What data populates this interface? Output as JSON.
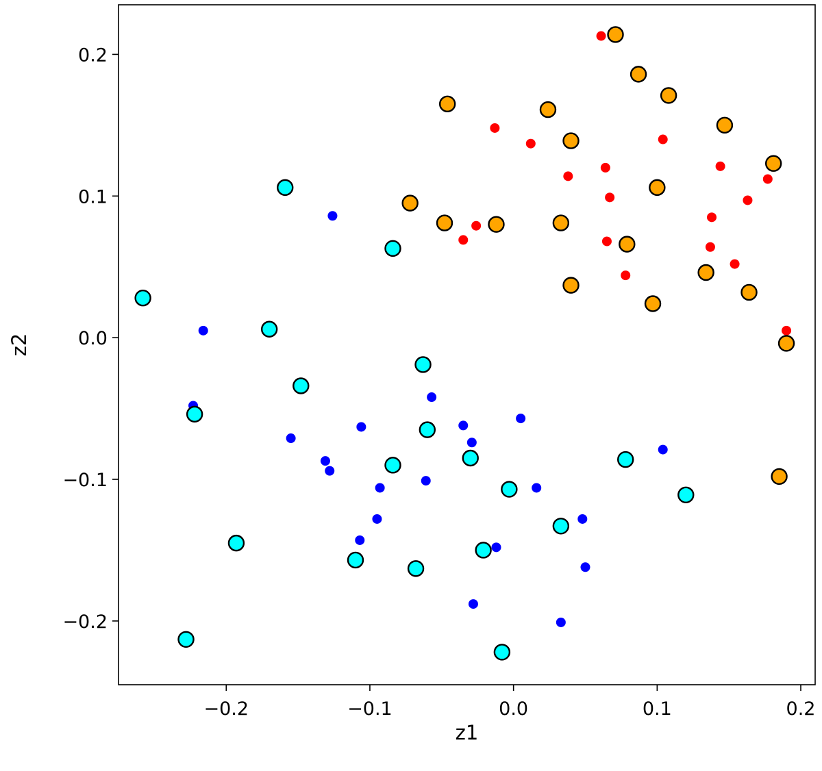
{
  "chart_data": {
    "type": "scatter",
    "title": "",
    "xlabel": "z1",
    "ylabel": "z2",
    "xlim": [
      -0.275,
      0.21
    ],
    "ylim": [
      -0.245,
      0.235
    ],
    "xticks": [
      -0.2,
      -0.1,
      0.0,
      0.1,
      0.2
    ],
    "xtick_labels": [
      "−0.2",
      "−0.1",
      "0.0",
      "0.1",
      "0.2"
    ],
    "yticks": [
      -0.2,
      -0.1,
      0.0,
      0.1,
      0.2
    ],
    "ytick_labels": [
      "−0.2",
      "−0.1",
      "0.0",
      "0.1",
      "0.2"
    ],
    "grid": false,
    "series": [
      {
        "color": "#ff0000",
        "marker": "small-dot",
        "points": [
          [
            0.061,
            0.213
          ],
          [
            -0.013,
            0.148
          ],
          [
            0.012,
            0.137
          ],
          [
            0.104,
            0.14
          ],
          [
            0.064,
            0.12
          ],
          [
            0.038,
            0.114
          ],
          [
            0.144,
            0.121
          ],
          [
            0.177,
            0.112
          ],
          [
            0.067,
            0.099
          ],
          [
            0.163,
            0.097
          ],
          [
            0.138,
            0.085
          ],
          [
            -0.026,
            0.079
          ],
          [
            -0.035,
            0.069
          ],
          [
            0.065,
            0.068
          ],
          [
            0.137,
            0.064
          ],
          [
            0.154,
            0.052
          ],
          [
            0.078,
            0.044
          ],
          [
            0.19,
            0.005
          ]
        ]
      },
      {
        "color": "#0000ff",
        "marker": "small-dot",
        "points": [
          [
            -0.126,
            0.086
          ],
          [
            -0.216,
            0.005
          ],
          [
            -0.223,
            -0.048
          ],
          [
            -0.057,
            -0.042
          ],
          [
            0.005,
            -0.057
          ],
          [
            -0.106,
            -0.063
          ],
          [
            -0.035,
            -0.062
          ],
          [
            -0.155,
            -0.071
          ],
          [
            -0.029,
            -0.074
          ],
          [
            -0.131,
            -0.087
          ],
          [
            -0.128,
            -0.094
          ],
          [
            0.104,
            -0.079
          ],
          [
            -0.061,
            -0.101
          ],
          [
            -0.093,
            -0.106
          ],
          [
            0.016,
            -0.106
          ],
          [
            -0.095,
            -0.128
          ],
          [
            0.048,
            -0.128
          ],
          [
            -0.107,
            -0.143
          ],
          [
            -0.012,
            -0.148
          ],
          [
            0.05,
            -0.162
          ],
          [
            -0.028,
            -0.188
          ],
          [
            0.033,
            -0.201
          ]
        ]
      },
      {
        "color": "#ffa500",
        "marker": "large-circle",
        "points": [
          [
            0.071,
            0.214
          ],
          [
            0.087,
            0.186
          ],
          [
            0.108,
            0.171
          ],
          [
            -0.046,
            0.165
          ],
          [
            0.024,
            0.161
          ],
          [
            0.147,
            0.15
          ],
          [
            0.04,
            0.139
          ],
          [
            0.181,
            0.123
          ],
          [
            0.1,
            0.106
          ],
          [
            -0.072,
            0.095
          ],
          [
            -0.048,
            0.081
          ],
          [
            -0.012,
            0.08
          ],
          [
            0.033,
            0.081
          ],
          [
            0.079,
            0.066
          ],
          [
            0.134,
            0.046
          ],
          [
            0.04,
            0.037
          ],
          [
            0.164,
            0.032
          ],
          [
            0.097,
            0.024
          ],
          [
            0.19,
            -0.004
          ],
          [
            0.185,
            -0.098
          ]
        ]
      },
      {
        "color": "#00ffff",
        "marker": "large-circle",
        "points": [
          [
            -0.159,
            0.106
          ],
          [
            -0.084,
            0.063
          ],
          [
            -0.258,
            0.028
          ],
          [
            -0.17,
            0.006
          ],
          [
            -0.063,
            -0.019
          ],
          [
            -0.148,
            -0.034
          ],
          [
            -0.222,
            -0.054
          ],
          [
            -0.06,
            -0.065
          ],
          [
            -0.03,
            -0.085
          ],
          [
            0.078,
            -0.086
          ],
          [
            -0.084,
            -0.09
          ],
          [
            -0.003,
            -0.107
          ],
          [
            0.12,
            -0.111
          ],
          [
            0.033,
            -0.133
          ],
          [
            -0.193,
            -0.145
          ],
          [
            -0.021,
            -0.15
          ],
          [
            -0.11,
            -0.157
          ],
          [
            -0.068,
            -0.163
          ],
          [
            -0.228,
            -0.213
          ],
          [
            -0.008,
            -0.222
          ]
        ]
      }
    ]
  }
}
